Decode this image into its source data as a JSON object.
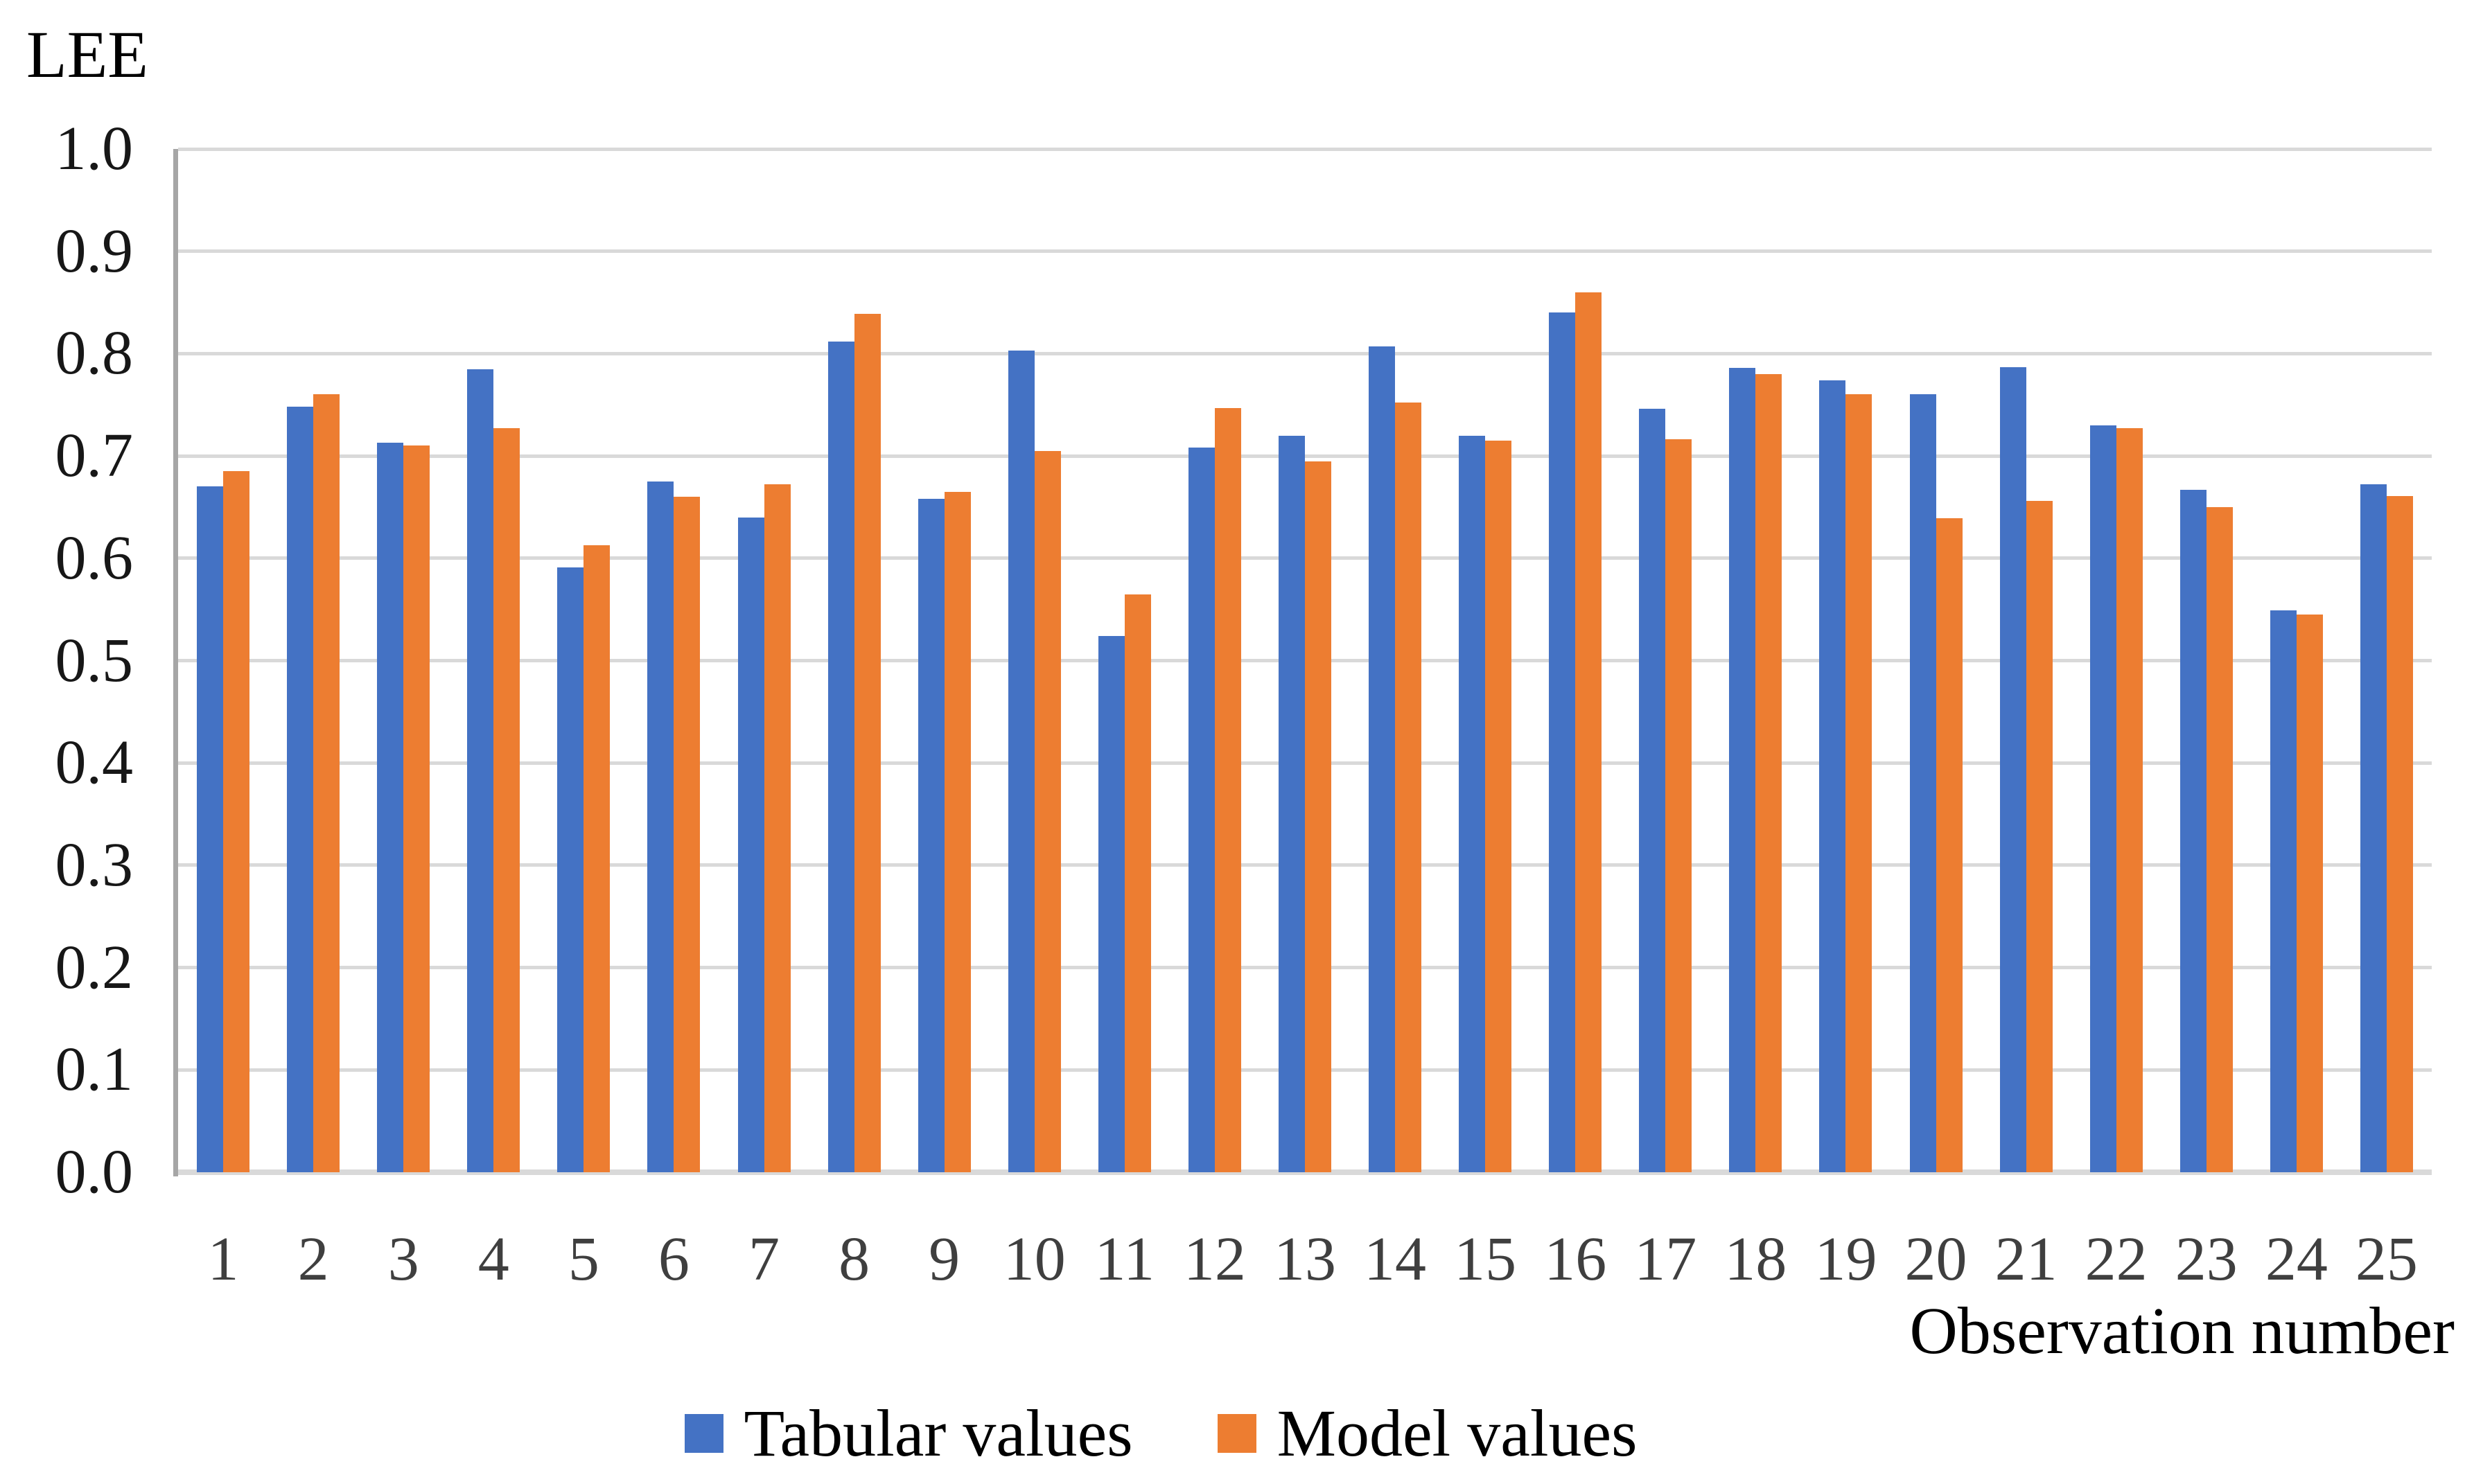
{
  "chart_data": {
    "type": "bar",
    "title": "LEE",
    "ylabel": "LEE",
    "xlabel": "Observation number",
    "ylim": [
      0.0,
      1.0
    ],
    "ytick_step": 0.1,
    "yticks": [
      "1.0",
      "0.9",
      "0.8",
      "0.7",
      "0.6",
      "0.5",
      "0.4",
      "0.3",
      "0.2",
      "0.1",
      "0.0"
    ],
    "grid": true,
    "legend_position": "bottom",
    "categories": [
      "1",
      "2",
      "3",
      "4",
      "5",
      "6",
      "7",
      "8",
      "9",
      "10",
      "11",
      "12",
      "13",
      "14",
      "15",
      "16",
      "17",
      "18",
      "19",
      "20",
      "21",
      "22",
      "23",
      "24",
      "25"
    ],
    "series": [
      {
        "name": "Tabular values",
        "color": "#4472C4",
        "values": [
          0.67,
          0.748,
          0.713,
          0.785,
          0.591,
          0.675,
          0.64,
          0.812,
          0.658,
          0.803,
          0.524,
          0.708,
          0.72,
          0.807,
          0.72,
          0.84,
          0.746,
          0.786,
          0.774,
          0.76,
          0.787,
          0.73,
          0.667,
          0.549,
          0.672
        ]
      },
      {
        "name": "Model values",
        "color": "#ED7D31",
        "values": [
          0.685,
          0.76,
          0.71,
          0.727,
          0.613,
          0.66,
          0.672,
          0.839,
          0.665,
          0.705,
          0.565,
          0.747,
          0.695,
          0.752,
          0.715,
          0.86,
          0.716,
          0.78,
          0.76,
          0.639,
          0.656,
          0.727,
          0.65,
          0.545,
          0.661
        ]
      }
    ]
  },
  "colors": {
    "gridline": "#D9D9D9",
    "axis_line": "#A6A6A6",
    "x_tick_text": "#3F3F3F",
    "y_tick_text": "#171717",
    "title_text": "#000000"
  }
}
